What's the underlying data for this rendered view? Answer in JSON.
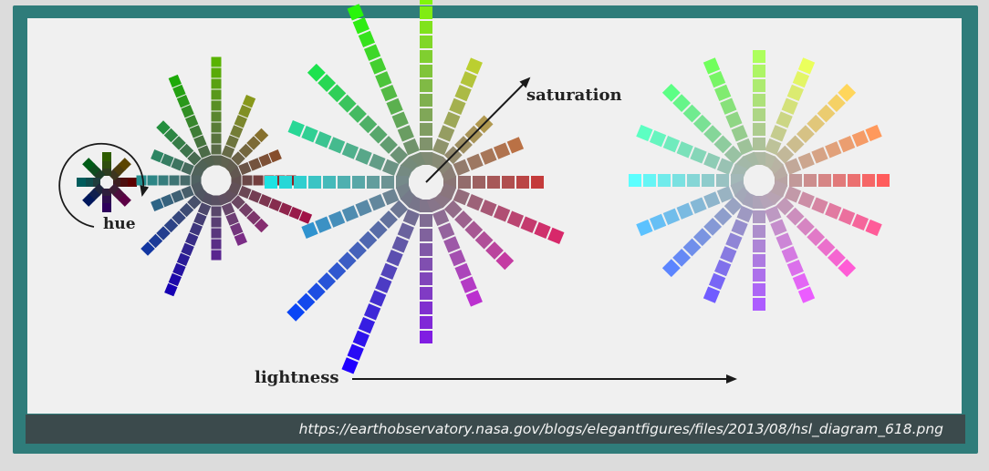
{
  "labels": {
    "hue": "hue",
    "saturation": "saturation",
    "lightness": "lightness"
  },
  "source": {
    "url": "https://earthobservatory.nasa.gov/blogs/elegantfigures/files/2013/08/hsl_diagram_618.png"
  },
  "wheels": [
    {
      "name": "hue-wheel-dark",
      "lightness": 0.18
    },
    {
      "name": "color-wheel-low",
      "lightness": 0.35
    },
    {
      "name": "color-wheel-mid",
      "lightness": 0.5
    },
    {
      "name": "color-wheel-high",
      "lightness": 0.68
    }
  ],
  "colors": {
    "frame": "#2f7c7a",
    "panel": "#f0f0f0",
    "caption_bar": "#3b4a4c",
    "arrow": "#1a1a1a"
  }
}
